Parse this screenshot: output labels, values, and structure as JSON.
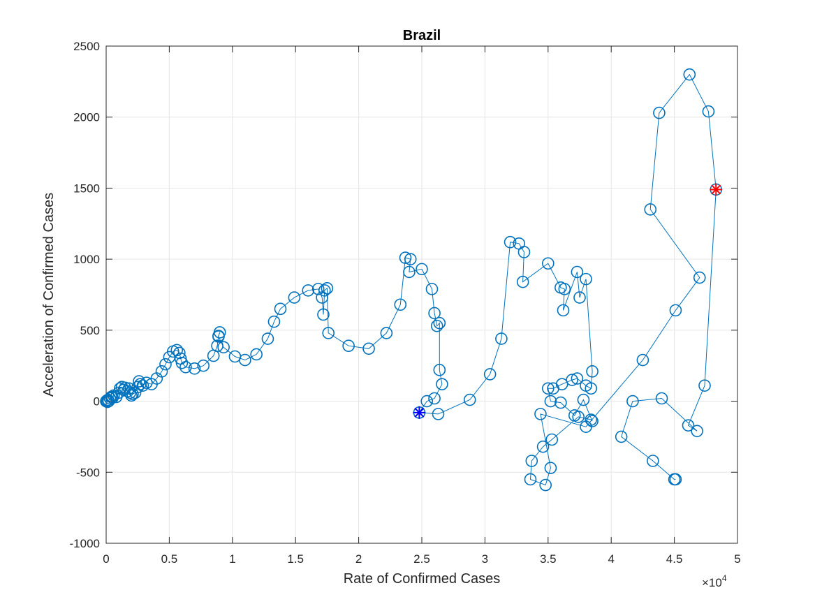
{
  "chart_data": {
    "type": "line",
    "title": "Brazil",
    "xlabel": "Rate of Confirmed Cases",
    "ylabel": "Acceleration of Confirmed Cases",
    "xlim": [
      0,
      50000
    ],
    "ylim": [
      -1000,
      2500
    ],
    "x_ticks": [
      0,
      5000,
      10000,
      15000,
      20000,
      25000,
      30000,
      35000,
      40000,
      45000,
      50000
    ],
    "x_tick_labels": [
      "0",
      "0.5",
      "1",
      "1.5",
      "2",
      "2.5",
      "3",
      "3.5",
      "4",
      "4.5",
      "5"
    ],
    "y_ticks": [
      -1000,
      -500,
      0,
      500,
      1000,
      1500,
      2000,
      2500
    ],
    "y_tick_labels": [
      "-1000",
      "-500",
      "0",
      "500",
      "1000",
      "1500",
      "2000",
      "2500"
    ],
    "x_exponent_label": "×10",
    "x_exponent_power": "4",
    "grid": true,
    "colors": {
      "series": "#0072BD",
      "start_marker": "#0000FF",
      "end_marker": "#FF0000",
      "grid": "#e6e6e6",
      "axis": "#262626"
    },
    "series": [
      {
        "marker": "circle",
        "points": [
          [
            0,
            0
          ],
          [
            50,
            5
          ],
          [
            100,
            -5
          ],
          [
            150,
            10
          ],
          [
            200,
            0
          ],
          [
            300,
            20
          ],
          [
            400,
            30
          ],
          [
            500,
            25
          ],
          [
            600,
            40
          ],
          [
            800,
            30
          ],
          [
            1000,
            60
          ],
          [
            1100,
            90
          ],
          [
            1250,
            100
          ],
          [
            1400,
            80
          ],
          [
            1500,
            95
          ],
          [
            1700,
            70
          ],
          [
            1800,
            90
          ],
          [
            1900,
            60
          ],
          [
            2000,
            40
          ],
          [
            2100,
            50
          ],
          [
            2300,
            60
          ],
          [
            2500,
            100
          ],
          [
            2600,
            140
          ],
          [
            2700,
            120
          ],
          [
            2900,
            110
          ],
          [
            3200,
            130
          ],
          [
            3600,
            120
          ],
          [
            4000,
            160
          ],
          [
            4400,
            210
          ],
          [
            4700,
            260
          ],
          [
            5000,
            310
          ],
          [
            5300,
            350
          ],
          [
            5600,
            360
          ],
          [
            5800,
            340
          ],
          [
            5900,
            300
          ],
          [
            6000,
            270
          ],
          [
            6300,
            240
          ],
          [
            7000,
            230
          ],
          [
            7700,
            250
          ],
          [
            8500,
            320
          ],
          [
            8800,
            390
          ],
          [
            8900,
            460
          ],
          [
            9000,
            485
          ],
          [
            8900,
            455
          ],
          [
            9300,
            380
          ],
          [
            10200,
            315
          ],
          [
            11000,
            290
          ],
          [
            11900,
            330
          ],
          [
            12800,
            440
          ],
          [
            13300,
            560
          ],
          [
            13800,
            650
          ],
          [
            14900,
            730
          ],
          [
            16000,
            780
          ],
          [
            16800,
            790
          ],
          [
            17100,
            730
          ],
          [
            17200,
            610
          ],
          [
            17300,
            780
          ],
          [
            17500,
            795
          ],
          [
            17600,
            480
          ],
          [
            19200,
            390
          ],
          [
            20800,
            370
          ],
          [
            22200,
            480
          ],
          [
            23300,
            680
          ],
          [
            23700,
            1010
          ],
          [
            24100,
            1000
          ],
          [
            24000,
            910
          ],
          [
            25000,
            930
          ],
          [
            25800,
            790
          ],
          [
            26000,
            620
          ],
          [
            26200,
            530
          ],
          [
            26400,
            550
          ],
          [
            26400,
            220
          ],
          [
            26600,
            120
          ],
          [
            26000,
            20
          ],
          [
            25400,
            0
          ],
          [
            24800,
            -80
          ],
          [
            26300,
            -90
          ],
          [
            28800,
            10
          ],
          [
            30400,
            190
          ],
          [
            31300,
            440
          ],
          [
            32000,
            1120
          ],
          [
            32700,
            1110
          ],
          [
            33100,
            1050
          ],
          [
            33000,
            840
          ],
          [
            35000,
            970
          ],
          [
            36000,
            800
          ],
          [
            36300,
            790
          ],
          [
            36200,
            640
          ],
          [
            37300,
            910
          ],
          [
            37500,
            730
          ],
          [
            38000,
            860
          ],
          [
            38500,
            210
          ],
          [
            38400,
            90
          ],
          [
            38000,
            110
          ],
          [
            37300,
            160
          ],
          [
            36900,
            150
          ],
          [
            36100,
            120
          ],
          [
            35400,
            90
          ],
          [
            35000,
            90
          ],
          [
            35200,
            0
          ],
          [
            36000,
            -10
          ],
          [
            37100,
            -100
          ],
          [
            37800,
            10
          ],
          [
            38500,
            -140
          ],
          [
            38400,
            -130
          ],
          [
            37400,
            -110
          ],
          [
            35300,
            -270
          ],
          [
            34600,
            -320
          ],
          [
            33700,
            -420
          ],
          [
            33600,
            -550
          ],
          [
            34800,
            -590
          ],
          [
            35200,
            -470
          ],
          [
            34400,
            -90
          ],
          [
            38000,
            -180
          ],
          [
            42500,
            290
          ],
          [
            45100,
            640
          ],
          [
            47000,
            870
          ],
          [
            43100,
            1350
          ],
          [
            43800,
            2030
          ],
          [
            46200,
            2300
          ],
          [
            47700,
            2040
          ],
          [
            48300,
            1490
          ],
          [
            47400,
            110
          ],
          [
            46100,
            -170
          ],
          [
            46800,
            -210
          ],
          [
            44000,
            20
          ],
          [
            41700,
            0
          ],
          [
            40800,
            -250
          ],
          [
            43300,
            -420
          ],
          [
            45000,
            -550
          ],
          [
            45100,
            -550
          ]
        ]
      }
    ],
    "start_point": [
      24800,
      -80
    ],
    "end_point": [
      48300,
      1490
    ]
  }
}
